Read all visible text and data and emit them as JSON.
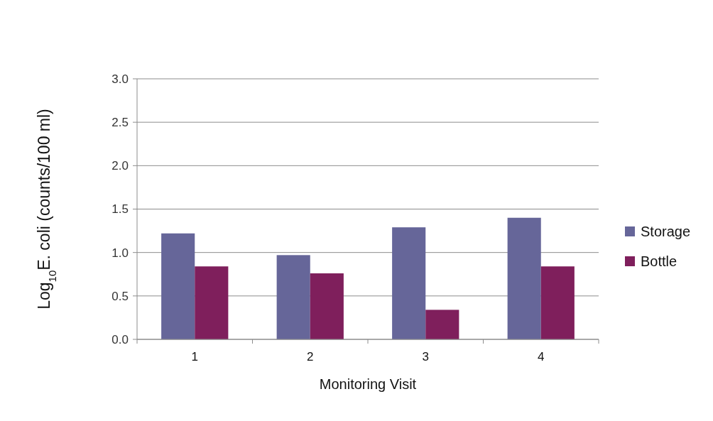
{
  "chart_data": {
    "type": "bar",
    "xlabel": "Monitoring Visit",
    "ylabel": "Log$_{10}$E.  coli (counts/100 ml)",
    "categories": [
      "1",
      "2",
      "3",
      "4"
    ],
    "series": [
      {
        "name": "Storage",
        "color": "#666699",
        "values": [
          1.22,
          0.97,
          1.29,
          1.4
        ]
      },
      {
        "name": "Bottle",
        "color": "#7f1f5c",
        "values": [
          0.84,
          0.76,
          0.34,
          0.84
        ]
      }
    ],
    "ylim": [
      0,
      3
    ],
    "yticks": [
      {
        "value": 0,
        "label": "0.0"
      },
      {
        "value": 0.5,
        "label": "0.5"
      },
      {
        "value": 1,
        "label": "1.0"
      },
      {
        "value": 1.5,
        "label": "1.5"
      },
      {
        "value": 2,
        "label": "2.0"
      },
      {
        "value": 2.5,
        "label": "2.5"
      },
      {
        "value": 3,
        "label": "3.0"
      }
    ],
    "grid": "y",
    "legend": "right"
  }
}
